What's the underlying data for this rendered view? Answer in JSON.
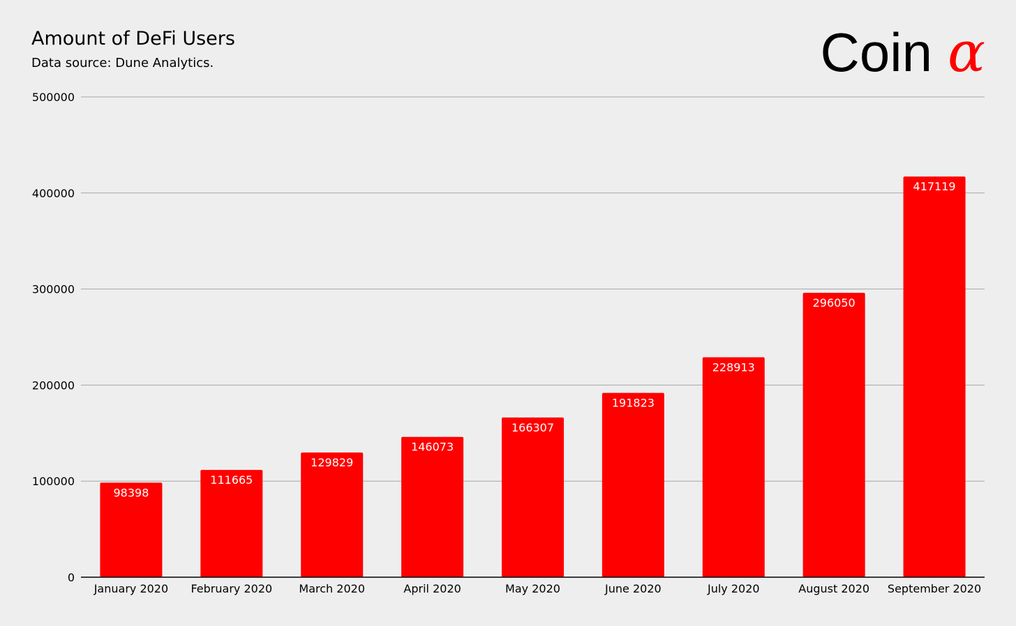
{
  "header": {
    "title": "Amount of DeFi Users",
    "subtitle": "Data source: Dune Analytics.",
    "logo_text": "Coin",
    "logo_symbol": "α"
  },
  "colors": {
    "background": "#eeeeee",
    "bar": "#ff0000",
    "bar_label": "#ffffff",
    "gridline": "#a6a6a6",
    "axis": "#000000",
    "logo_symbol": "#ff0000"
  },
  "chart_data": {
    "type": "bar",
    "title": "Amount of DeFi Users",
    "subtitle": "Data source: Dune Analytics.",
    "xlabel": "",
    "ylabel": "",
    "categories": [
      "January 2020",
      "February 2020",
      "March 2020",
      "April 2020",
      "May 2020",
      "June 2020",
      "July 2020",
      "August 2020",
      "September 2020"
    ],
    "values": [
      98398,
      111665,
      129829,
      146073,
      166307,
      191823,
      228913,
      296050,
      417119
    ],
    "ylim": [
      0,
      500000
    ],
    "yticks": [
      0,
      100000,
      200000,
      300000,
      400000,
      500000
    ],
    "grid": true,
    "legend": "none",
    "data_labels": "inside-top"
  }
}
